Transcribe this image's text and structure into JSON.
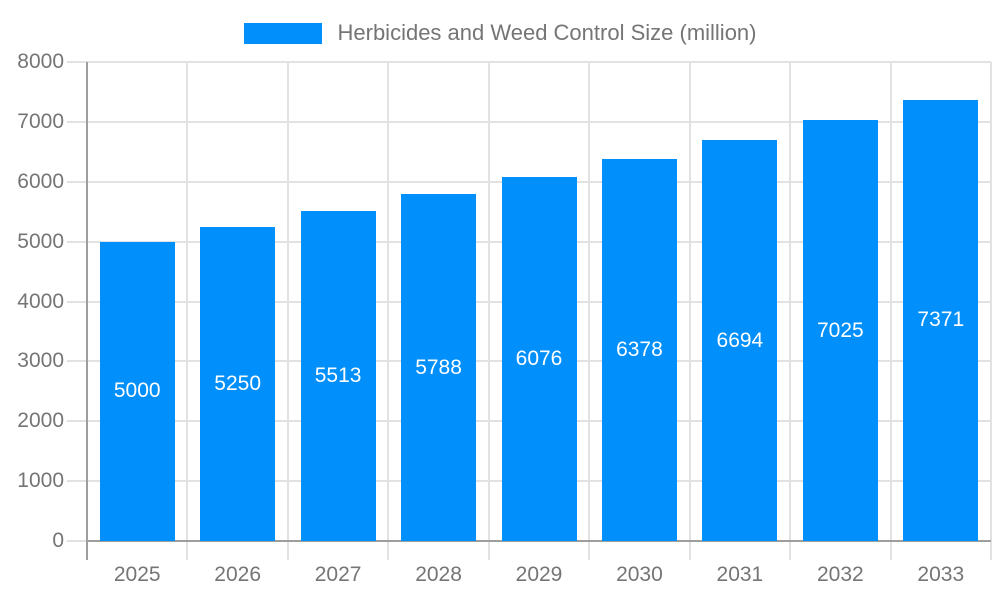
{
  "chart_data": {
    "type": "bar",
    "title": "Herbicides and Weed Control Size (million)",
    "legend": {
      "position": "top",
      "label": "Herbicides and Weed Control Size (million)"
    },
    "categories": [
      "2025",
      "2026",
      "2027",
      "2028",
      "2029",
      "2030",
      "2031",
      "2032",
      "2033"
    ],
    "values": [
      5000,
      5250,
      5513,
      5788,
      6076,
      6378,
      6694,
      7025,
      7371
    ],
    "xlabel": "",
    "ylabel": "",
    "ylim": [
      0,
      8000
    ],
    "yticks": [
      0,
      1000,
      2000,
      3000,
      4000,
      5000,
      6000,
      7000,
      8000
    ],
    "grid": true,
    "bar_labels_inside": true,
    "colors": {
      "bar": "#008FFB",
      "bar_label": "#FFFFFF",
      "axis_text": "#757575",
      "gridline": "#E2E2E2",
      "axis_line": "#9E9E9E"
    }
  }
}
